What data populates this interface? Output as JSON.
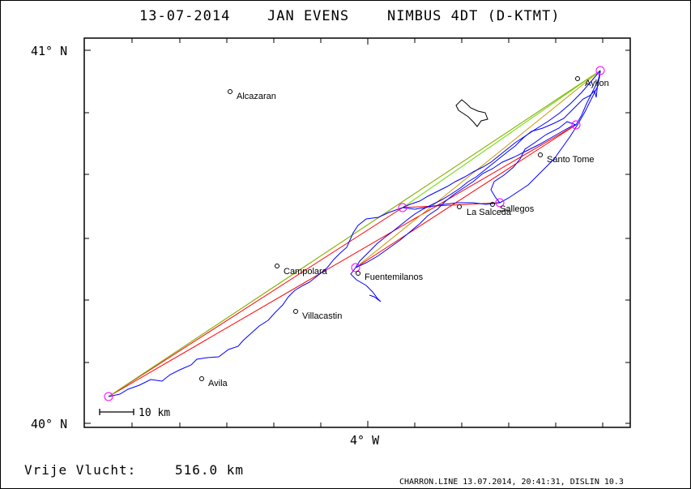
{
  "header": {
    "date": "13-07-2014",
    "pilot": "JAN EVENS",
    "glider": "NIMBUS 4DT (D-KTMT)"
  },
  "axes": {
    "lat_top_label": "41° N",
    "lat_bottom_label": "40° N",
    "lon_label": "4° W"
  },
  "scale_bar": {
    "label": "10 km"
  },
  "towns": [
    {
      "name": "Alcazaran"
    },
    {
      "name": "Ayllon"
    },
    {
      "name": "Santo Tome"
    },
    {
      "name": "La Salceda"
    },
    {
      "name": "Sallegos"
    },
    {
      "name": "Campolara"
    },
    {
      "name": "Fuentemilanos"
    },
    {
      "name": "Villacastin"
    },
    {
      "name": "Avila"
    }
  ],
  "footer": {
    "distance_label": "Vrije Vlucht:",
    "distance_value": "516.0 km",
    "file_info": "CHARRON.LINE 13.07.2014, 20:41:31, DISLIN 10.3"
  },
  "colors": {
    "track": "#0000ff",
    "task_line_red": "#ff0000",
    "task_line_green": "#66dd00",
    "task_line_orange": "#cc9900",
    "turnpoint": "#ff00ff",
    "frame": "#000000"
  }
}
